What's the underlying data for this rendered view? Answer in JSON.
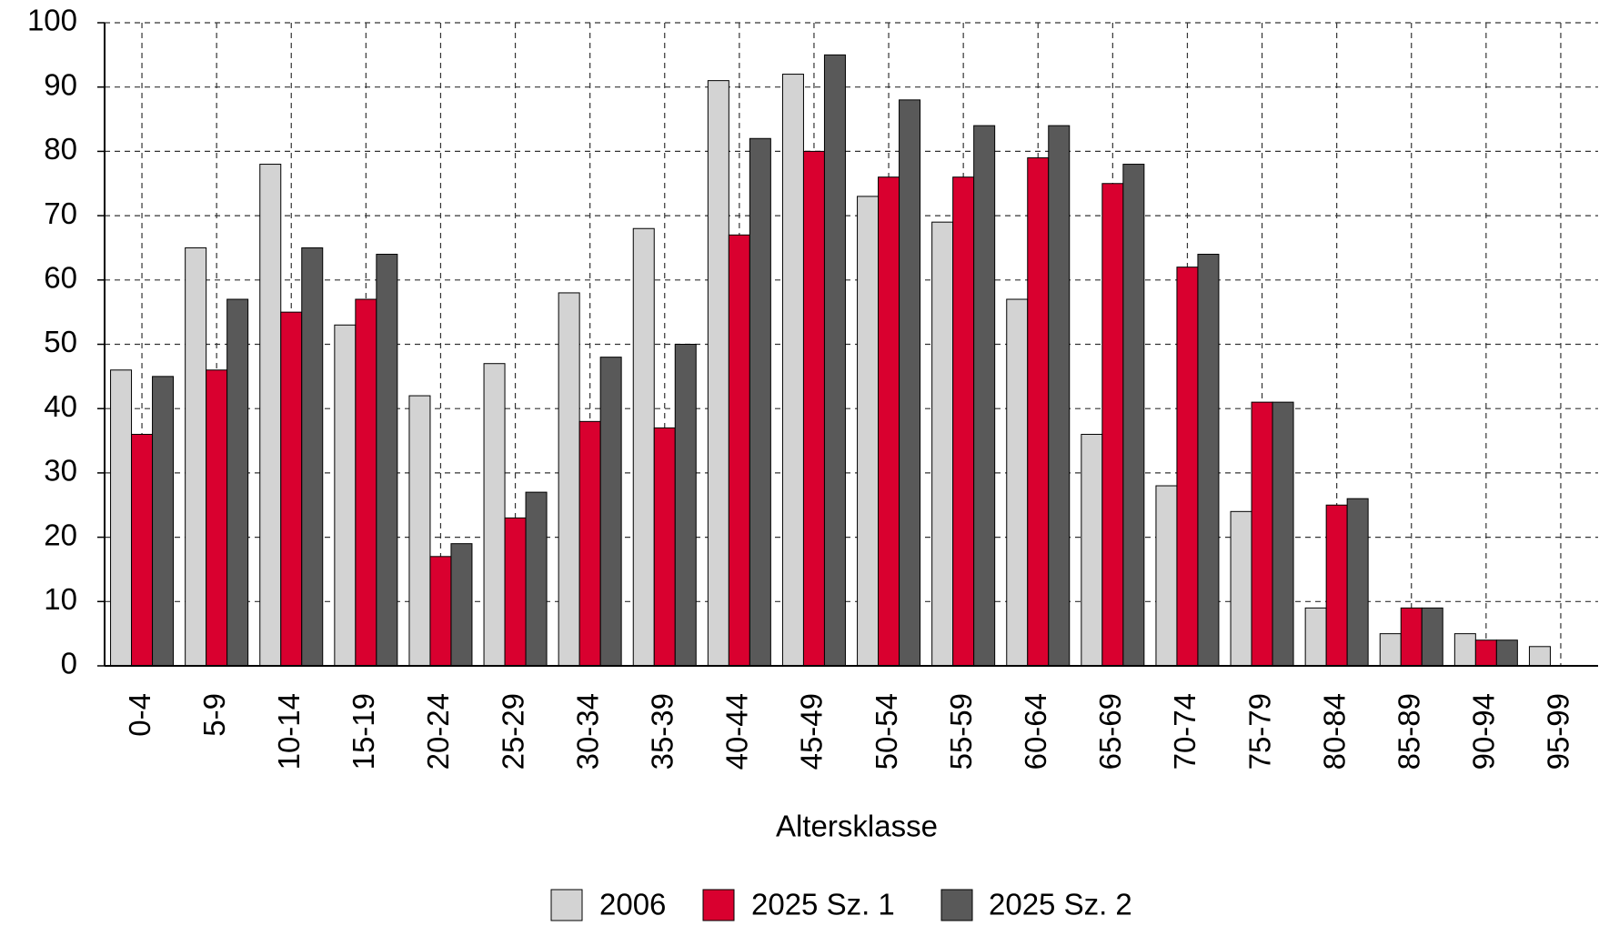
{
  "chart_data": {
    "type": "bar",
    "x_label": "Altersklasse",
    "categories": [
      "0-4",
      "5-9",
      "10-14",
      "15-19",
      "20-24",
      "25-29",
      "30-34",
      "35-39",
      "40-44",
      "45-49",
      "50-54",
      "55-59",
      "60-64",
      "65-69",
      "70-74",
      "75-79",
      "80-84",
      "85-89",
      "90-94",
      "95-99"
    ],
    "series": [
      {
        "name": "2006",
        "color": "#d3d3d3",
        "values": [
          46,
          65,
          78,
          53,
          42,
          47,
          58,
          68,
          91,
          92,
          73,
          69,
          57,
          36,
          28,
          24,
          9,
          5,
          5,
          3
        ]
      },
      {
        "name": "2025 Sz. 1",
        "color": "#d9002f",
        "values": [
          36,
          46,
          55,
          57,
          17,
          23,
          38,
          37,
          67,
          80,
          76,
          76,
          79,
          75,
          62,
          41,
          25,
          9,
          4,
          0
        ]
      },
      {
        "name": "2025 Sz. 2",
        "color": "#595959",
        "values": [
          45,
          57,
          65,
          64,
          19,
          27,
          48,
          50,
          82,
          95,
          88,
          84,
          84,
          78,
          64,
          41,
          26,
          9,
          4,
          0
        ]
      }
    ],
    "ylim": [
      0,
      100
    ],
    "yticks": [
      0,
      10,
      20,
      30,
      40,
      50,
      60,
      70,
      80,
      90,
      100
    ],
    "grid": true
  }
}
